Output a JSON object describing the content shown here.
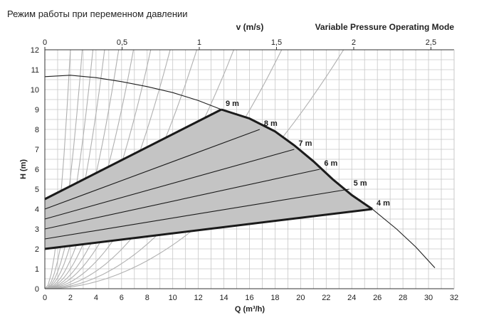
{
  "chart_data": {
    "type": "line",
    "title": "Режим работы при переменном давлении",
    "subtitle": "Variable Pressure Operating Mode",
    "xlabel": "Q (m³/h)",
    "ylabel": "H (m)",
    "top_axis_label": "v (m/s)",
    "xlim": [
      0,
      32
    ],
    "ylim": [
      0,
      12
    ],
    "top_axis_range": [
      0,
      2.65
    ],
    "x_ticks": [
      "0",
      "2",
      "4",
      "6",
      "8",
      "10",
      "12",
      "14",
      "16",
      "18",
      "20",
      "22",
      "24",
      "26",
      "28",
      "30",
      "32"
    ],
    "y_ticks": [
      "0",
      "1",
      "2",
      "3",
      "4",
      "5",
      "6",
      "7",
      "8",
      "9",
      "10",
      "11",
      "12"
    ],
    "top_ticks": [
      {
        "value": 0,
        "label": "0"
      },
      {
        "value": 0.5,
        "label": "0,5"
      },
      {
        "value": 1,
        "label": "1"
      },
      {
        "value": 1.5,
        "label": "1,5"
      },
      {
        "value": 2,
        "label": "2"
      },
      {
        "value": 2.5,
        "label": "2,5"
      }
    ],
    "grid": true,
    "max_curve": [
      [
        0,
        10.65
      ],
      [
        2,
        10.72
      ],
      [
        4,
        10.6
      ],
      [
        6,
        10.4
      ],
      [
        8,
        10.15
      ],
      [
        10,
        9.85
      ],
      [
        12,
        9.45
      ],
      [
        13.8,
        9.0
      ],
      [
        16,
        8.55
      ],
      [
        18,
        7.9
      ],
      [
        19.5,
        7.2
      ],
      [
        21,
        6.4
      ],
      [
        22.5,
        5.5
      ],
      [
        24,
        4.7
      ],
      [
        25.6,
        4.0
      ],
      [
        27.5,
        3.0
      ],
      [
        29,
        2.1
      ],
      [
        30.5,
        1.05
      ]
    ],
    "system_curves": [
      {
        "k": 3.0
      },
      {
        "k": 1.4
      },
      {
        "k": 0.85
      },
      {
        "k": 0.55
      },
      {
        "k": 0.36
      },
      {
        "k": 0.25
      },
      {
        "k": 0.175
      },
      {
        "k": 0.125
      },
      {
        "k": 0.085
      },
      {
        "k": 0.055
      },
      {
        "k": 0.035
      },
      {
        "k": 0.022
      }
    ],
    "region": {
      "start_h": [
        2.0,
        4.5
      ],
      "end_q": [
        25.6,
        13.8
      ]
    },
    "pressure_lines": [
      {
        "label": "9 m",
        "start_h": 4.5,
        "end": [
          13.8,
          9.0
        ],
        "bold": true
      },
      {
        "label": "8 m",
        "start_h": 4.0,
        "end": [
          16.8,
          8.0
        ],
        "bold": false
      },
      {
        "label": "7 m",
        "start_h": 3.5,
        "end": [
          19.5,
          7.0
        ],
        "bold": false
      },
      {
        "label": "6 m",
        "start_h": 3.0,
        "end": [
          21.5,
          6.0
        ],
        "bold": false
      },
      {
        "label": "5 m",
        "start_h": 2.5,
        "end": [
          23.8,
          5.0
        ],
        "bold": false
      },
      {
        "label": "4 m",
        "start_h": 2.0,
        "end": [
          25.6,
          4.0
        ],
        "bold": true
      }
    ]
  },
  "colors": {
    "grid": "#c8c8c8",
    "region_fill": "#c4c4c4",
    "outline": "#1a1a1a",
    "pump_curve": "#1f1f1f",
    "system_curve": "#b0b0b0",
    "text": "#222222"
  }
}
